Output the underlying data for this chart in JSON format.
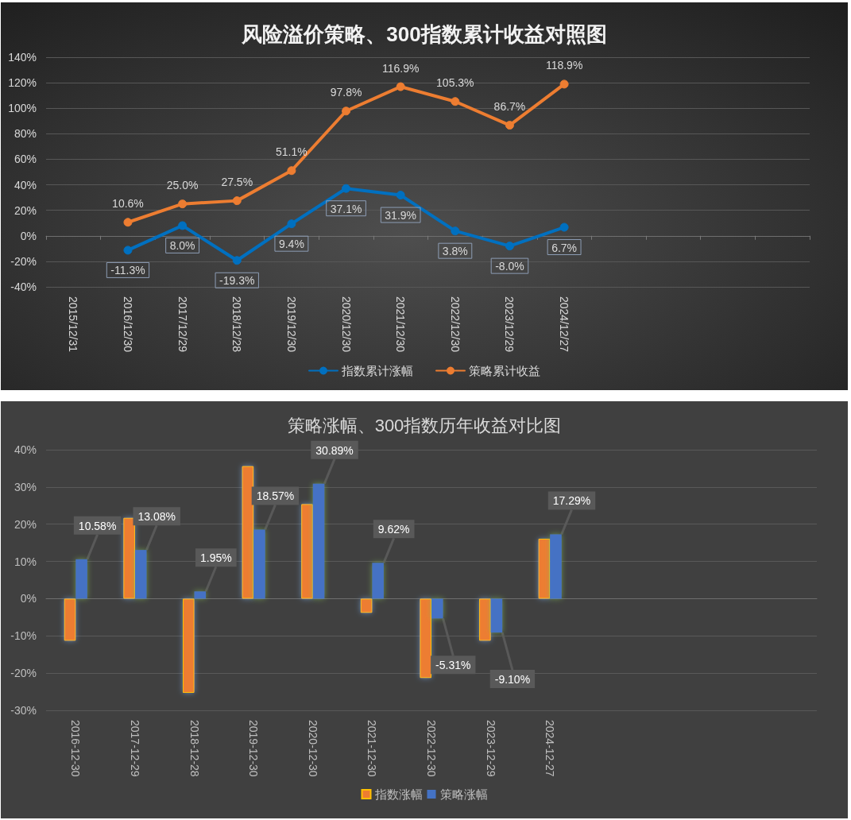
{
  "chart_data": [
    {
      "type": "line",
      "title": "风险溢价策略、300指数累计收益对照图",
      "categories": [
        "2015/12/31",
        "2016/12/30",
        "2017/12/29",
        "2018/12/28",
        "2019/12/30",
        "2020/12/30",
        "2021/12/30",
        "2022/12/30",
        "2023/12/29",
        "2024/12/27",
        null,
        null,
        null,
        null
      ],
      "series": [
        {
          "name": "指数累计涨幅",
          "color": "#0070c0",
          "values": [
            null,
            -11.3,
            8.0,
            -19.3,
            9.4,
            37.1,
            31.9,
            3.8,
            -8.0,
            6.7,
            null,
            null,
            null,
            null
          ],
          "value_labels": [
            null,
            "-11.3%",
            "8.0%",
            "-19.3%",
            "9.4%",
            "37.1%",
            "31.9%",
            "3.8%",
            "-8.0%",
            "6.7%",
            null,
            null,
            null,
            null
          ]
        },
        {
          "name": "策略累计收益",
          "color": "#ed7d31",
          "values": [
            null,
            10.6,
            25.0,
            27.5,
            51.1,
            97.8,
            116.9,
            105.3,
            86.7,
            118.9,
            null,
            null,
            null,
            null
          ],
          "value_labels": [
            null,
            "10.6%",
            "25.0%",
            "27.5%",
            "51.1%",
            "97.8%",
            "116.9%",
            "105.3%",
            "86.7%",
            "118.9%",
            null,
            null,
            null,
            null
          ]
        }
      ],
      "ylim": [
        -40,
        140
      ],
      "yticks": [
        {
          "value": -40,
          "label": "-40%"
        },
        {
          "value": -20,
          "label": "-20%"
        },
        {
          "value": 0,
          "label": "0%"
        },
        {
          "value": 20,
          "label": "20%"
        },
        {
          "value": 40,
          "label": "40%"
        },
        {
          "value": 60,
          "label": "60%"
        },
        {
          "value": 80,
          "label": "80%"
        },
        {
          "value": 100,
          "label": "100%"
        },
        {
          "value": 120,
          "label": "120%"
        },
        {
          "value": 140,
          "label": "140%"
        }
      ],
      "grid": "y",
      "legend": "bottom",
      "marker": "circle",
      "line_style": "solid"
    },
    {
      "type": "bar",
      "title": "策略涨幅、300指数历年收益对比图",
      "categories": [
        "2016-12-30",
        "2017-12-29",
        "2018-12-28",
        "2019-12-30",
        "2020-12-30",
        "2021-12-30",
        "2022-12-30",
        "2023-12-29",
        "2024-12-27",
        null,
        null,
        null,
        null
      ],
      "series": [
        {
          "name": "指数涨幅",
          "color": "#ed7d31",
          "values": [
            -11.3,
            21.7,
            -25.3,
            35.6,
            25.4,
            -3.8,
            -21.3,
            -11.3,
            16.1,
            null,
            null,
            null,
            null
          ]
        },
        {
          "name": "策略涨幅",
          "color": "#4472c4",
          "values": [
            10.58,
            13.08,
            1.95,
            18.57,
            30.89,
            9.62,
            -5.31,
            -9.1,
            17.29,
            null,
            null,
            null,
            null
          ],
          "value_labels": [
            "10.58%",
            "13.08%",
            "1.95%",
            "18.57%",
            "30.89%",
            "9.62%",
            "-5.31%",
            "-9.10%",
            "17.29%",
            null,
            null,
            null,
            null
          ]
        }
      ],
      "ylim": [
        -30,
        40
      ],
      "yticks": [
        {
          "value": -30,
          "label": "-30%"
        },
        {
          "value": -20,
          "label": "-20%"
        },
        {
          "value": -10,
          "label": "-10%"
        },
        {
          "value": 0,
          "label": "0%"
        },
        {
          "value": 10,
          "label": "10%"
        },
        {
          "value": 20,
          "label": "20%"
        },
        {
          "value": 30,
          "label": "30%"
        },
        {
          "value": 40,
          "label": "40%"
        }
      ],
      "grid": "y",
      "legend": "bottom"
    }
  ]
}
